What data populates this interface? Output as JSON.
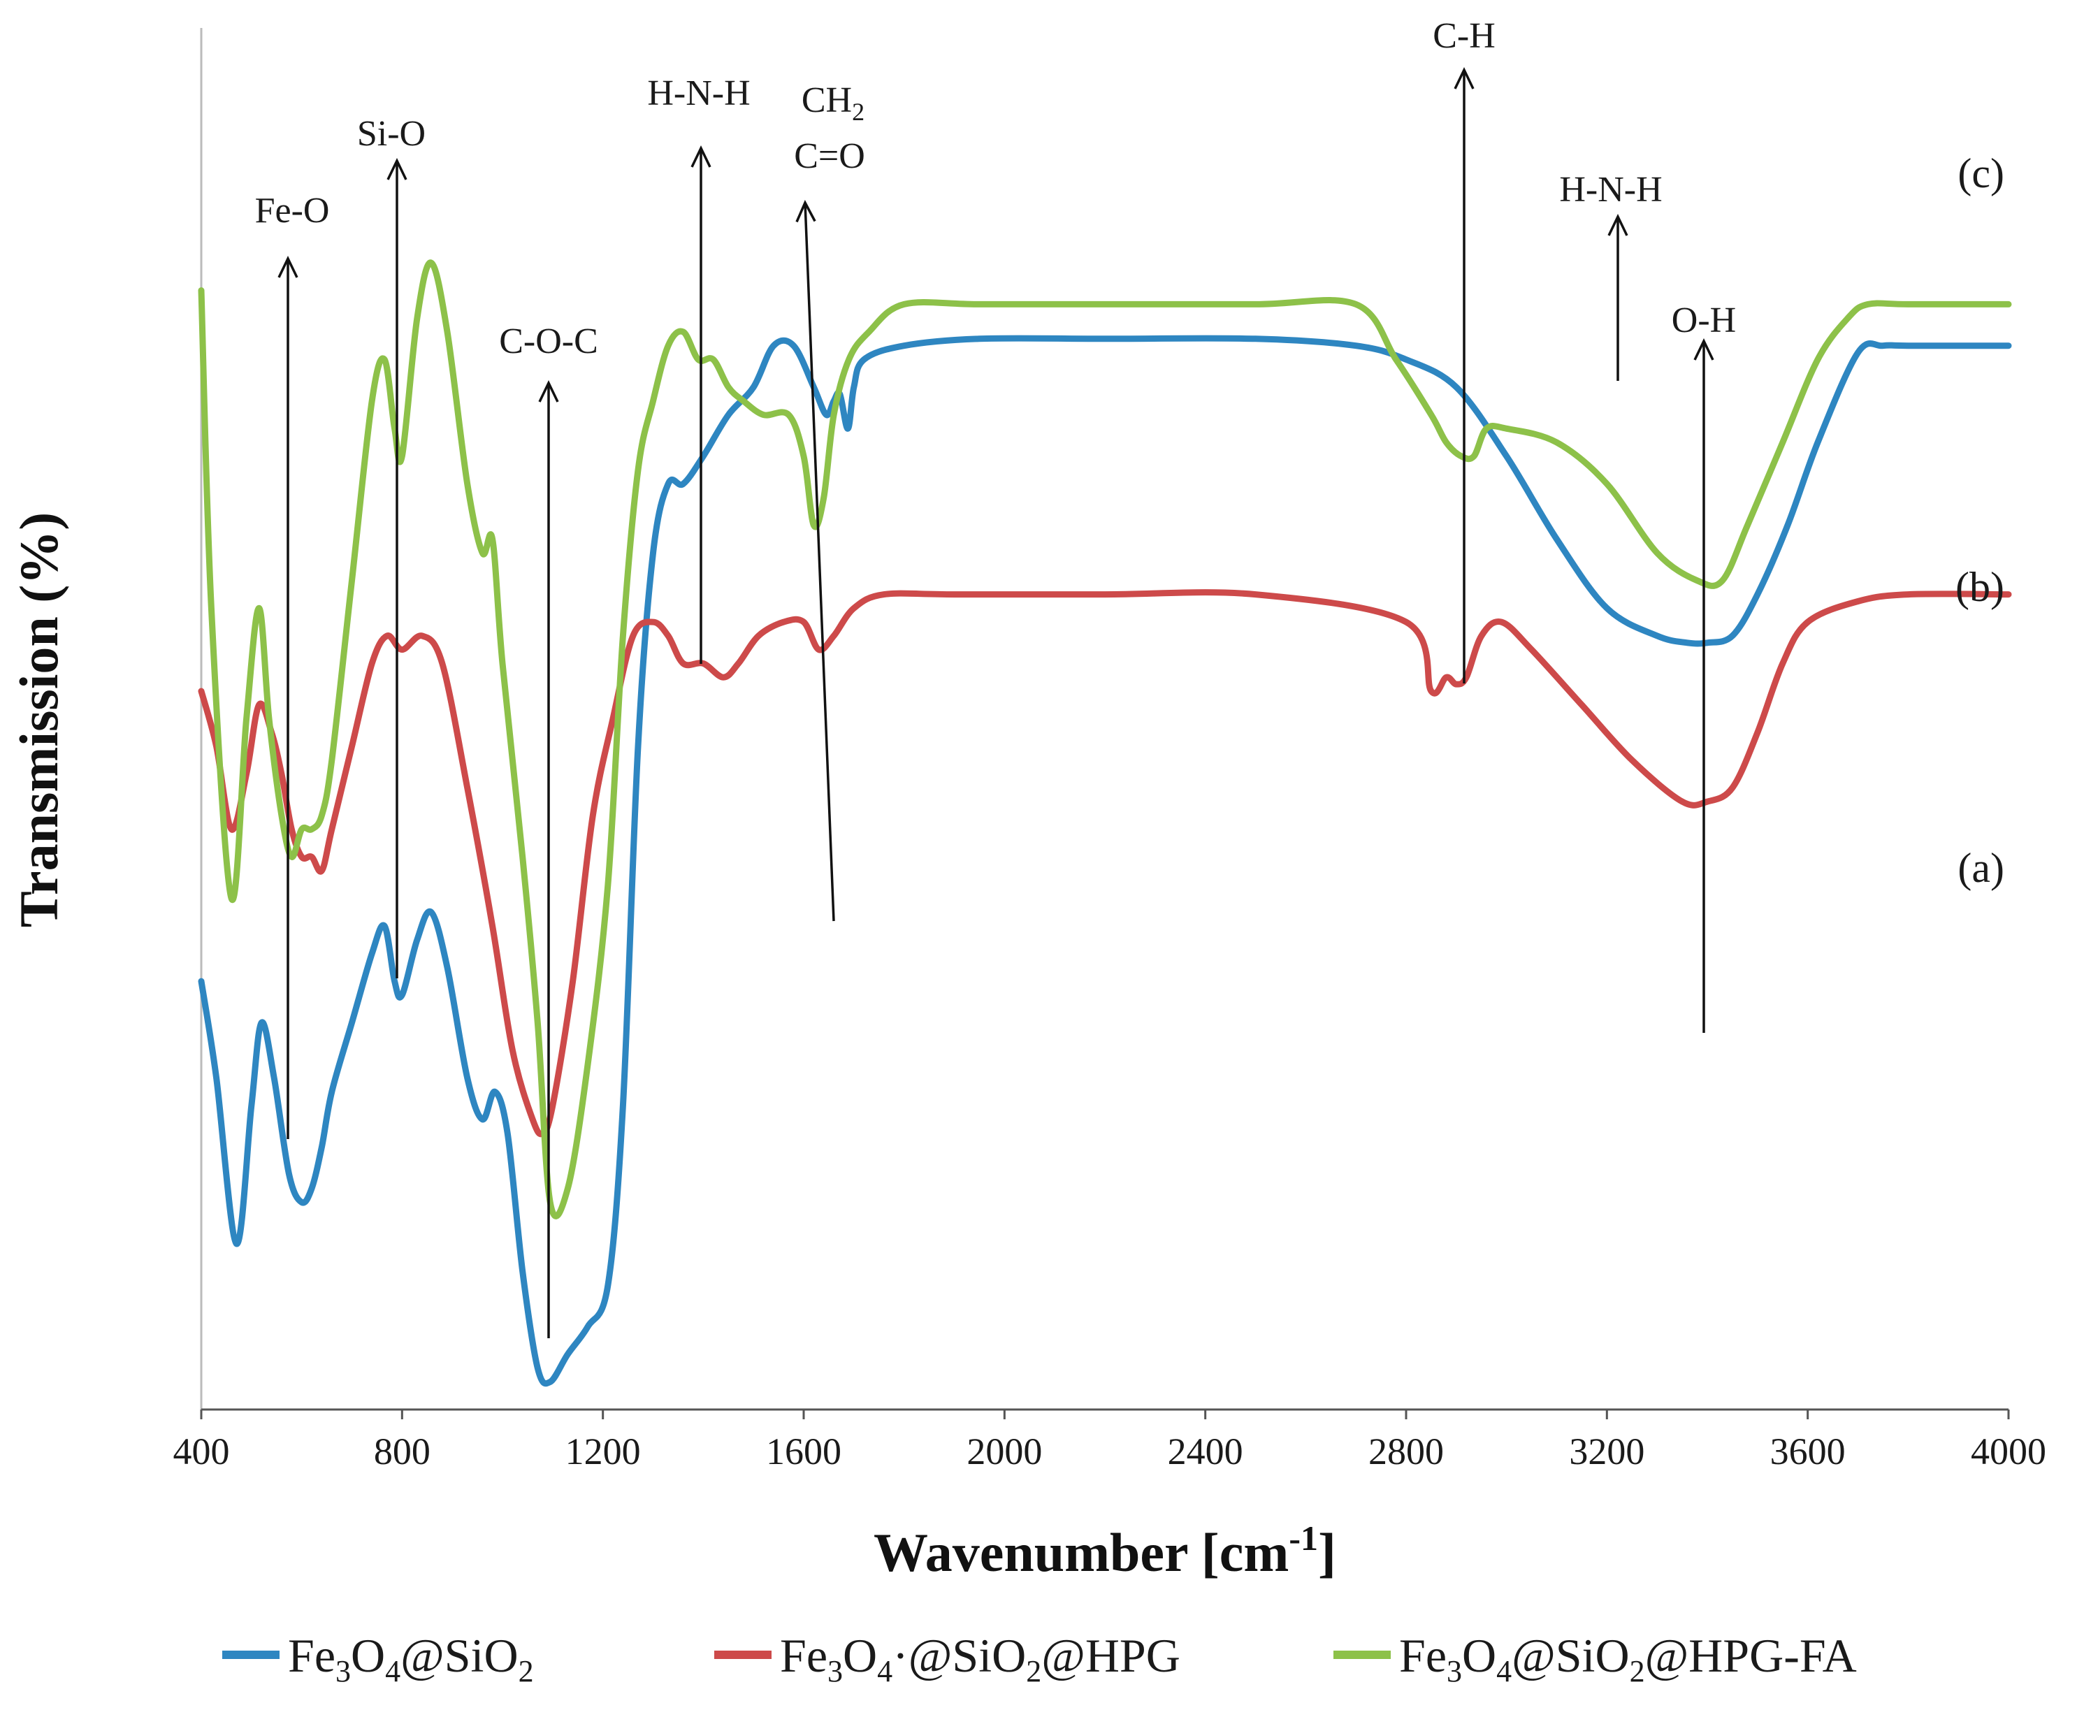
{
  "chart_data": {
    "type": "line",
    "title": "",
    "xlabel": "Wavenumber [cm",
    "xlabel_sup": "-1",
    "xlabel_end": "]",
    "ylabel": "Transmission (%)",
    "xlim": [
      400,
      4000
    ],
    "ylim": [
      0,
      100
    ],
    "x_ticks": [
      "400",
      "800",
      "1200",
      "1600",
      "2000",
      "2400",
      "2800",
      "3200",
      "3600",
      "4000"
    ],
    "series": [
      {
        "name": "Fe3O4@SiO2",
        "label": "(a)",
        "color": "#2E86C1",
        "x": [
          400,
          430,
          470,
          500,
          520,
          545,
          575,
          600,
          620,
          640,
          660,
          700,
          740,
          765,
          785,
          800,
          830,
          858,
          890,
          930,
          960,
          985,
          1010,
          1040,
          1070,
          1095,
          1130,
          1170,
          1210,
          1240,
          1270,
          1300,
          1330,
          1360,
          1400,
          1450,
          1500,
          1540,
          1580,
          1620,
          1645,
          1660,
          1672,
          1688,
          1700,
          1720,
          1800,
          1950,
          2200,
          2500,
          2700,
          2800,
          2900,
          3000,
          3100,
          3200,
          3300,
          3360,
          3400,
          3450,
          3500,
          3560,
          3620,
          3700,
          3750,
          3800,
          4000
        ],
        "y": [
          31,
          24,
          12,
          22,
          28,
          24,
          17,
          15,
          16,
          19,
          23,
          28,
          33,
          35,
          31,
          30,
          34,
          36,
          32,
          24,
          21,
          23,
          20,
          10,
          3,
          2,
          4,
          6,
          9,
          22,
          48,
          62,
          67,
          67,
          69,
          72,
          74,
          77,
          77,
          74,
          72,
          73,
          73.5,
          71,
          74,
          76,
          77,
          77.5,
          77.5,
          77.5,
          77,
          76,
          74,
          69,
          63,
          58,
          56,
          55.5,
          55.5,
          56,
          59,
          64,
          70,
          76.5,
          77,
          77,
          77
        ]
      },
      {
        "name": "Fe3O4@SiO2@HPG",
        "label": "(b)",
        "color": "#CD4A4A",
        "x": [
          400,
          430,
          460,
          490,
          515,
          540,
          560,
          580,
          600,
          620,
          640,
          660,
          700,
          740,
          770,
          800,
          840,
          880,
          930,
          980,
          1020,
          1060,
          1080,
          1100,
          1140,
          1180,
          1220,
          1260,
          1300,
          1330,
          1360,
          1400,
          1440,
          1470,
          1510,
          1560,
          1600,
          1630,
          1660,
          1700,
          1760,
          1900,
          2200,
          2500,
          2800,
          2850,
          2880,
          2900,
          2920,
          2950,
          2990,
          3050,
          3150,
          3250,
          3350,
          3400,
          3450,
          3500,
          3550,
          3600,
          3700,
          3800,
          4000
        ],
        "y": [
          52,
          48,
          42,
          46,
          51,
          49,
          46,
          42,
          40,
          40,
          39,
          42,
          48,
          54,
          56,
          55,
          56,
          54,
          45,
          35,
          26,
          21,
          20,
          22,
          31,
          43,
          50,
          56,
          57,
          56,
          54,
          54,
          53,
          54,
          56,
          57,
          57,
          55,
          56,
          58,
          59,
          59,
          59,
          59,
          57,
          52,
          53,
          52.5,
          53,
          56,
          57,
          55,
          51,
          47,
          44,
          44,
          45,
          49,
          54,
          57,
          58.5,
          59,
          59
        ]
      },
      {
        "name": "Fe3O4@SiO2@HPG-FA",
        "label": "(c)",
        "color": "#8DC149",
        "x": [
          400,
          420,
          460,
          490,
          515,
          535,
          560,
          580,
          600,
          620,
          640,
          660,
          700,
          740,
          765,
          785,
          800,
          830,
          858,
          890,
          930,
          960,
          980,
          1000,
          1040,
          1070,
          1095,
          1130,
          1170,
          1210,
          1240,
          1270,
          1300,
          1330,
          1360,
          1390,
          1420,
          1450,
          1480,
          1520,
          1570,
          1600,
          1620,
          1640,
          1660,
          1690,
          1730,
          1800,
          1950,
          2200,
          2500,
          2700,
          2780,
          2850,
          2880,
          2910,
          2935,
          2960,
          3000,
          3100,
          3200,
          3300,
          3380,
          3430,
          3480,
          3550,
          3620,
          3680,
          3720,
          3800,
          4000
        ],
        "y": [
          81,
          58,
          37,
          50,
          58,
          50,
          43,
          40,
          42,
          42,
          43,
          47,
          60,
          73,
          76,
          71,
          69,
          79,
          83,
          78,
          67,
          62,
          63,
          54,
          40,
          28,
          15,
          16,
          25,
          38,
          56,
          68,
          73,
          77,
          78,
          76,
          76,
          74,
          73,
          72,
          72,
          69,
          64,
          66,
          72,
          76,
          78,
          80,
          80,
          80,
          80,
          80,
          76,
          72,
          70,
          69,
          69,
          71,
          71,
          70,
          67,
          62,
          60,
          60,
          64,
          70,
          76,
          79,
          80,
          80,
          80
        ]
      }
    ],
    "annotations": [
      {
        "text": "Fe-O",
        "x": 580
      },
      {
        "text": "Si-O",
        "x": 800
      },
      {
        "text": "C-O-C",
        "x": 1100
      },
      {
        "text": "H-N-H",
        "x": 1400
      },
      {
        "text": "CH",
        "sub": "2",
        "x": 1630
      },
      {
        "text": "C=O",
        "x": 1630
      },
      {
        "text": "C-H",
        "x": 2920
      },
      {
        "text": "H-N-H",
        "x": 3220
      },
      {
        "text": "O-H",
        "x": 3400
      }
    ]
  },
  "legend": {
    "items": [
      {
        "pre": "Fe",
        "s1": "3",
        "mid": "O",
        "s2": "4",
        "post": "@SiO",
        "s3": "2",
        "tail": ""
      },
      {
        "pre": "Fe",
        "s1": "3",
        "mid": "O",
        "s2": "4",
        "post": "·@SiO",
        "s3": "2",
        "tail": "@HPG"
      },
      {
        "pre": "Fe",
        "s1": "3",
        "mid": "O",
        "s2": "4",
        "post": "@SiO",
        "s3": "2",
        "tail": "@HPG-FA"
      }
    ]
  }
}
